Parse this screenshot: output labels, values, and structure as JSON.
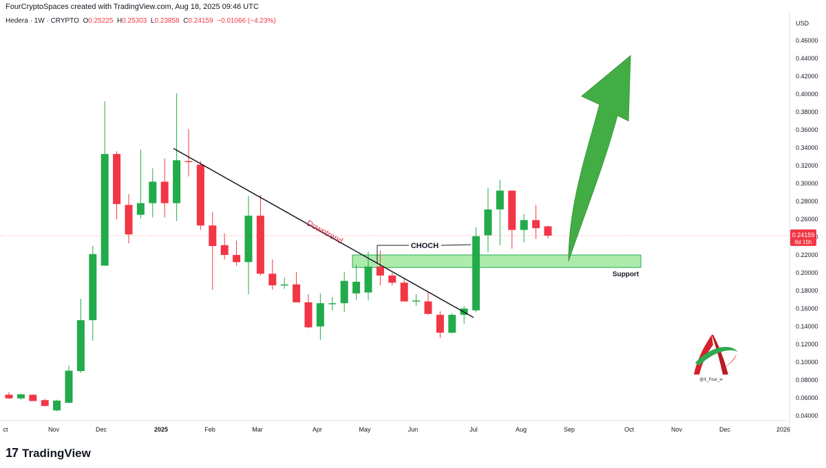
{
  "header": {
    "credit": "FourCryptoSpaces created with TradingView.com, Aug 18, 2025 09:46 UTC"
  },
  "symbol": {
    "name": "Hedera · 1W · CRYPTO",
    "o_label": "O",
    "o": "0.25225",
    "h_label": "H",
    "h": "0.25303",
    "l_label": "L",
    "l": "0.23858",
    "c_label": "C",
    "c": "0.24159",
    "change": "−0.01066 (−4.23%)"
  },
  "footer": {
    "logo_mark": "17",
    "brand": "TradingView"
  },
  "chart_data": {
    "type": "candlestick",
    "currency": "USD",
    "ylim": [
      0.03,
      0.47
    ],
    "y_ticks": [
      "0.46000",
      "0.44000",
      "0.42000",
      "0.40000",
      "0.38000",
      "0.36000",
      "0.34000",
      "0.32000",
      "0.30000",
      "0.28000",
      "0.26000",
      "0.24000",
      "0.22000",
      "0.20000",
      "0.18000",
      "0.16000",
      "0.14000",
      "0.12000",
      "0.10000",
      "0.08000",
      "0.06000",
      "0.04000"
    ],
    "x_ticks": [
      "ct",
      "Nov",
      "Dec",
      "2025",
      "Feb",
      "Mar",
      "Apr",
      "May",
      "Jun",
      "Jul",
      "Aug",
      "Sep",
      "Oct",
      "Nov",
      "Dec",
      "2026"
    ],
    "x_ticks_bold": [
      "2025"
    ],
    "last_price_label": "0.24159",
    "countdown_label": "6d 15h",
    "colors": {
      "up": "#22ab4a",
      "down": "#f23645",
      "trendline": "#131722",
      "zone_fill": "#9ee89e",
      "zone_stroke": "#22ab4a",
      "arrow": "#43ad45"
    },
    "candles": [
      {
        "o": 0.0636,
        "h": 0.0665,
        "l": 0.059,
        "c": 0.0595
      },
      {
        "o": 0.0594,
        "h": 0.065,
        "l": 0.058,
        "c": 0.064
      },
      {
        "o": 0.0635,
        "h": 0.064,
        "l": 0.0565,
        "c": 0.0565
      },
      {
        "o": 0.0575,
        "h": 0.059,
        "l": 0.0505,
        "c": 0.051
      },
      {
        "o": 0.046,
        "h": 0.058,
        "l": 0.045,
        "c": 0.057
      },
      {
        "o": 0.0545,
        "h": 0.096,
        "l": 0.054,
        "c": 0.0905
      },
      {
        "o": 0.09,
        "h": 0.171,
        "l": 0.088,
        "c": 0.147
      },
      {
        "o": 0.147,
        "h": 0.23,
        "l": 0.124,
        "c": 0.221
      },
      {
        "o": 0.208,
        "h": 0.392,
        "l": 0.208,
        "c": 0.333
      },
      {
        "o": 0.333,
        "h": 0.336,
        "l": 0.26,
        "c": 0.277
      },
      {
        "o": 0.276,
        "h": 0.288,
        "l": 0.233,
        "c": 0.243
      },
      {
        "o": 0.265,
        "h": 0.338,
        "l": 0.261,
        "c": 0.278
      },
      {
        "o": 0.278,
        "h": 0.317,
        "l": 0.262,
        "c": 0.302
      },
      {
        "o": 0.302,
        "h": 0.328,
        "l": 0.262,
        "c": 0.278
      },
      {
        "o": 0.278,
        "h": 0.401,
        "l": 0.258,
        "c": 0.326
      },
      {
        "o": 0.325,
        "h": 0.361,
        "l": 0.308,
        "c": 0.324
      },
      {
        "o": 0.321,
        "h": 0.325,
        "l": 0.248,
        "c": 0.253
      },
      {
        "o": 0.253,
        "h": 0.268,
        "l": 0.181,
        "c": 0.23
      },
      {
        "o": 0.231,
        "h": 0.244,
        "l": 0.215,
        "c": 0.22
      },
      {
        "o": 0.22,
        "h": 0.236,
        "l": 0.208,
        "c": 0.212
      },
      {
        "o": 0.212,
        "h": 0.286,
        "l": 0.176,
        "c": 0.264
      },
      {
        "o": 0.264,
        "h": 0.287,
        "l": 0.197,
        "c": 0.199
      },
      {
        "o": 0.199,
        "h": 0.215,
        "l": 0.181,
        "c": 0.186
      },
      {
        "o": 0.186,
        "h": 0.195,
        "l": 0.182,
        "c": 0.187
      },
      {
        "o": 0.187,
        "h": 0.201,
        "l": 0.167,
        "c": 0.167
      },
      {
        "o": 0.167,
        "h": 0.176,
        "l": 0.138,
        "c": 0.139
      },
      {
        "o": 0.14,
        "h": 0.177,
        "l": 0.125,
        "c": 0.166
      },
      {
        "o": 0.166,
        "h": 0.173,
        "l": 0.158,
        "c": 0.166
      },
      {
        "o": 0.166,
        "h": 0.201,
        "l": 0.156,
        "c": 0.191
      },
      {
        "o": 0.177,
        "h": 0.209,
        "l": 0.17,
        "c": 0.19
      },
      {
        "o": 0.178,
        "h": 0.224,
        "l": 0.169,
        "c": 0.207
      },
      {
        "o": 0.207,
        "h": 0.225,
        "l": 0.186,
        "c": 0.197
      },
      {
        "o": 0.197,
        "h": 0.2,
        "l": 0.186,
        "c": 0.189
      },
      {
        "o": 0.189,
        "h": 0.193,
        "l": 0.168,
        "c": 0.168
      },
      {
        "o": 0.168,
        "h": 0.176,
        "l": 0.163,
        "c": 0.169
      },
      {
        "o": 0.168,
        "h": 0.178,
        "l": 0.153,
        "c": 0.154
      },
      {
        "o": 0.153,
        "h": 0.157,
        "l": 0.127,
        "c": 0.133
      },
      {
        "o": 0.133,
        "h": 0.155,
        "l": 0.132,
        "c": 0.153
      },
      {
        "o": 0.153,
        "h": 0.163,
        "l": 0.143,
        "c": 0.16
      },
      {
        "o": 0.158,
        "h": 0.251,
        "l": 0.156,
        "c": 0.241
      },
      {
        "o": 0.242,
        "h": 0.295,
        "l": 0.223,
        "c": 0.271
      },
      {
        "o": 0.271,
        "h": 0.304,
        "l": 0.231,
        "c": 0.292
      },
      {
        "o": 0.292,
        "h": 0.292,
        "l": 0.227,
        "c": 0.248
      },
      {
        "o": 0.248,
        "h": 0.266,
        "l": 0.234,
        "c": 0.259
      },
      {
        "o": 0.259,
        "h": 0.276,
        "l": 0.238,
        "c": 0.25
      },
      {
        "o": 0.252,
        "h": 0.253,
        "l": 0.2386,
        "c": 0.2416
      }
    ],
    "annotations": {
      "trend_label": "Downtrend",
      "choch_label": "CHOCH",
      "support_label": "Support",
      "support_zone": [
        0.206,
        0.22
      ],
      "watermark_handle": "@X_Four_iv"
    }
  }
}
